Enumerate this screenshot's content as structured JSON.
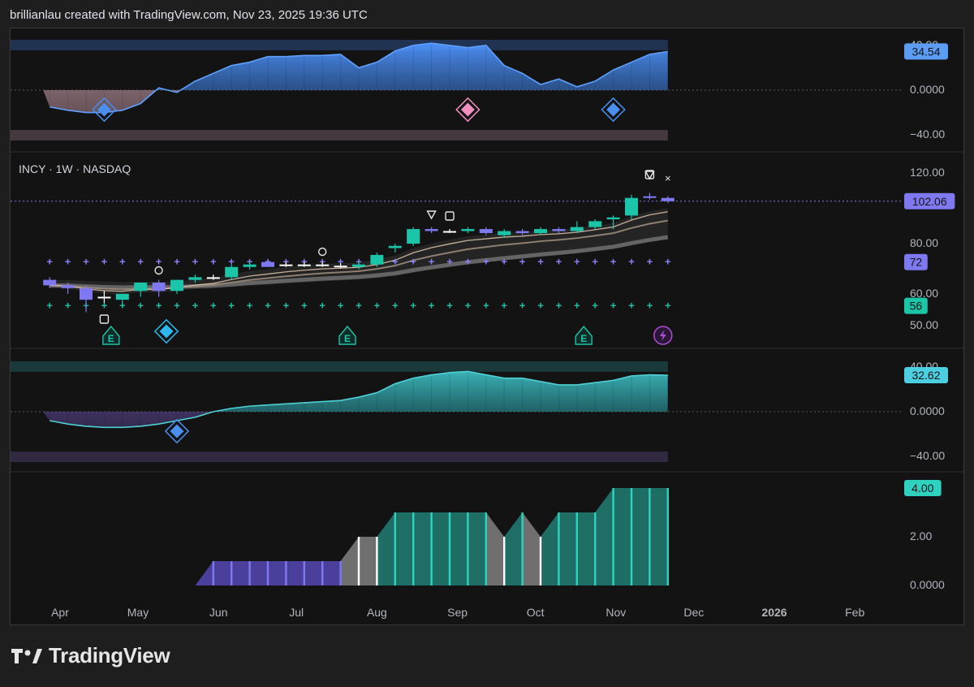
{
  "header": {
    "text": "brillianlau created with TradingView.com, Nov 23, 2025 19:36 UTC"
  },
  "footer": {
    "brand": "TradingView",
    "logo_icon": "tradingview-logo-icon"
  },
  "colors": {
    "bg": "#131313",
    "blue": "#4a8ff0",
    "pink": "#c9a5ae",
    "teal": "#26c6b5",
    "purple": "#7b6cf0",
    "up": "#1bc5a8",
    "down": "#7e79f0",
    "white": "#ffffff",
    "gray": "#8a8a8a"
  },
  "chart_data": [
    {
      "type": "area",
      "pane": "top-oscillator",
      "y_ticks": [
        "40.00",
        "0.0000",
        "−40.00"
      ],
      "y_range": [
        -45,
        45
      ],
      "last_value_label": "34.54",
      "x": [
        "Mar 28",
        "Apr 4",
        "Apr 11",
        "Apr 18",
        "Apr 25",
        "May 2",
        "May 9",
        "May 16",
        "May 23",
        "May 30",
        "Jun 6",
        "Jun 13",
        "Jun 20",
        "Jun 27",
        "Jul 4",
        "Jul 11",
        "Jul 18",
        "Jul 25",
        "Aug 1",
        "Aug 8",
        "Aug 15",
        "Aug 22",
        "Aug 29",
        "Sep 5",
        "Sep 12",
        "Sep 19",
        "Sep 26",
        "Oct 3",
        "Oct 10",
        "Oct 17",
        "Oct 24",
        "Oct 31",
        "Nov 7",
        "Nov 14",
        "Nov 21"
      ],
      "values": [
        -15,
        -18,
        -20,
        -20,
        -18,
        -12,
        2,
        -2,
        8,
        15,
        22,
        25,
        30,
        30,
        31,
        31,
        32,
        20,
        25,
        35,
        40,
        42,
        40,
        38,
        40,
        22,
        15,
        5,
        10,
        3,
        8,
        18,
        25,
        32,
        34.54
      ],
      "markers": [
        {
          "date": "Apr 18",
          "shape": "diamond",
          "color": "#4a8ff0"
        },
        {
          "date": "Sep 5",
          "shape": "diamond",
          "color": "#f08fc0"
        },
        {
          "date": "Oct 31",
          "shape": "diamond",
          "color": "#4a8ff0"
        }
      ]
    },
    {
      "type": "candlestick",
      "pane": "price",
      "title": "INCY · 1W · NASDAQ",
      "y_ticks": [
        "120.00",
        "80.00",
        "60.00",
        "50.00"
      ],
      "last_price": "102.06",
      "price_labels": [
        {
          "text": "102.06",
          "value": 102.06,
          "color": "#7e79f0"
        },
        {
          "text": "72",
          "value": 72,
          "color": "#7e79f0"
        },
        {
          "text": "56",
          "value": 56,
          "color": "#1bc5a8"
        }
      ],
      "candles": [
        {
          "d": "Mar 28",
          "o": 65,
          "h": 66,
          "l": 62,
          "c": 63
        },
        {
          "d": "Apr 4",
          "o": 63,
          "h": 64,
          "l": 60,
          "c": 62
        },
        {
          "d": "Apr 11",
          "o": 62,
          "h": 63,
          "l": 54,
          "c": 58
        },
        {
          "d": "Apr 18",
          "o": 59,
          "h": 61,
          "l": 57,
          "c": 59
        },
        {
          "d": "Apr 25",
          "o": 58,
          "h": 60,
          "l": 56,
          "c": 60
        },
        {
          "d": "May 2",
          "o": 61,
          "h": 64,
          "l": 59,
          "c": 64
        },
        {
          "d": "May 9",
          "o": 64,
          "h": 65,
          "l": 59,
          "c": 61
        },
        {
          "d": "May 16",
          "o": 61,
          "h": 65,
          "l": 60,
          "c": 65
        },
        {
          "d": "May 23",
          "o": 65,
          "h": 67,
          "l": 64,
          "c": 66
        },
        {
          "d": "May 30",
          "o": 66,
          "h": 67,
          "l": 65,
          "c": 66
        },
        {
          "d": "Jun 6",
          "o": 66,
          "h": 71,
          "l": 65,
          "c": 70
        },
        {
          "d": "Jun 13",
          "o": 70,
          "h": 72,
          "l": 69,
          "c": 71
        },
        {
          "d": "Jun 20",
          "o": 72,
          "h": 73,
          "l": 70,
          "c": 70
        },
        {
          "d": "Jun 27",
          "o": 71,
          "h": 72,
          "l": 70,
          "c": 71
        },
        {
          "d": "Jul 4",
          "o": 71,
          "h": 72,
          "l": 70,
          "c": 71
        },
        {
          "d": "Jul 11",
          "o": 71,
          "h": 72,
          "l": 70,
          "c": 71
        },
        {
          "d": "Jul 18",
          "o": 70.5,
          "h": 71.5,
          "l": 69.5,
          "c": 70.5
        },
        {
          "d": "Jul 25",
          "o": 70,
          "h": 72,
          "l": 69,
          "c": 71
        },
        {
          "d": "Aug 1",
          "o": 71,
          "h": 76,
          "l": 70,
          "c": 75
        },
        {
          "d": "Aug 8",
          "o": 78,
          "h": 80,
          "l": 76,
          "c": 79
        },
        {
          "d": "Aug 15",
          "o": 80,
          "h": 88,
          "l": 79,
          "c": 87
        },
        {
          "d": "Aug 22",
          "o": 87,
          "h": 88,
          "l": 85,
          "c": 86
        },
        {
          "d": "Aug 29",
          "o": 86,
          "h": 87,
          "l": 85,
          "c": 86
        },
        {
          "d": "Sep 5",
          "o": 86,
          "h": 88,
          "l": 85,
          "c": 87
        },
        {
          "d": "Sep 12",
          "o": 87,
          "h": 88,
          "l": 84,
          "c": 85
        },
        {
          "d": "Sep 19",
          "o": 84,
          "h": 87,
          "l": 83,
          "c": 86
        },
        {
          "d": "Sep 26",
          "o": 86,
          "h": 87,
          "l": 84,
          "c": 85
        },
        {
          "d": "Oct 3",
          "o": 85,
          "h": 88,
          "l": 84,
          "c": 87
        },
        {
          "d": "Oct 10",
          "o": 87,
          "h": 88,
          "l": 85,
          "c": 86
        },
        {
          "d": "Oct 17",
          "o": 86,
          "h": 91,
          "l": 85,
          "c": 88
        },
        {
          "d": "Oct 24",
          "o": 88,
          "h": 92,
          "l": 87,
          "c": 91
        },
        {
          "d": "Oct 31",
          "o": 92,
          "h": 94,
          "l": 87,
          "c": 93
        },
        {
          "d": "Nov 7",
          "o": 94,
          "h": 106,
          "l": 92,
          "c": 104
        },
        {
          "d": "Nov 14",
          "o": 105,
          "h": 107,
          "l": 103,
          "c": 104
        },
        {
          "d": "Nov 21",
          "o": 104,
          "h": 105,
          "l": 101,
          "c": 102.06
        }
      ],
      "earnings_markers": [
        {
          "date": "Apr 25",
          "label": "E"
        },
        {
          "date": "Jul 25",
          "label": "E"
        },
        {
          "date": "Oct 24",
          "label": "E"
        }
      ],
      "dividend_marker": {
        "date": "Nov 21",
        "icon": "lightning-icon"
      }
    },
    {
      "type": "area",
      "pane": "middle-oscillator",
      "y_ticks": [
        "40.00",
        "0.0000",
        "−40.00"
      ],
      "y_range": [
        -45,
        45
      ],
      "last_value_label": "32.62",
      "x": [
        "Mar 28",
        "Apr 4",
        "Apr 11",
        "Apr 18",
        "Apr 25",
        "May 2",
        "May 9",
        "May 16",
        "May 23",
        "May 30",
        "Jun 6",
        "Jun 13",
        "Jun 20",
        "Jun 27",
        "Jul 4",
        "Jul 11",
        "Jul 18",
        "Jul 25",
        "Aug 1",
        "Aug 8",
        "Aug 15",
        "Aug 22",
        "Aug 29",
        "Sep 5",
        "Sep 12",
        "Sep 19",
        "Sep 26",
        "Oct 3",
        "Oct 10",
        "Oct 17",
        "Oct 24",
        "Oct 31",
        "Nov 7",
        "Nov 14",
        "Nov 21"
      ],
      "values": [
        -8,
        -11,
        -13,
        -14,
        -14,
        -13,
        -11,
        -8,
        -5,
        0,
        3,
        5,
        6,
        7,
        8,
        9,
        10,
        13,
        17,
        25,
        30,
        33,
        35,
        36,
        33,
        30,
        30,
        27,
        24,
        24,
        26,
        28,
        32,
        33,
        32.62
      ],
      "markers": [
        {
          "date": "May 16",
          "shape": "diamond",
          "color": "#4a8ff0"
        }
      ]
    },
    {
      "type": "bar",
      "pane": "bottom-histogram",
      "y_ticks": [
        "4.00",
        "2.00",
        "0.0000"
      ],
      "y_range": [
        0,
        4.5
      ],
      "last_value_label": "4.00",
      "x": [
        "May 23",
        "May 30",
        "Jun 6",
        "Jun 13",
        "Jun 20",
        "Jun 27",
        "Jul 4",
        "Jul 11",
        "Jul 18",
        "Jul 25",
        "Aug 1",
        "Aug 8",
        "Aug 15",
        "Aug 22",
        "Aug 29",
        "Sep 5",
        "Sep 12",
        "Sep 19",
        "Sep 26",
        "Oct 3",
        "Oct 10",
        "Oct 17",
        "Oct 24",
        "Oct 31",
        "Nov 7",
        "Nov 14",
        "Nov 21"
      ],
      "values": [
        0,
        1,
        1,
        1,
        1,
        1,
        1,
        1,
        1,
        2,
        2,
        3,
        3,
        3,
        3,
        3,
        3,
        2,
        3,
        2,
        3,
        3,
        3,
        4,
        4,
        4,
        4
      ],
      "colors": [
        "purple",
        "purple",
        "purple",
        "purple",
        "purple",
        "purple",
        "purple",
        "purple",
        "purple",
        "gray",
        "gray",
        "teal",
        "teal",
        "teal",
        "teal",
        "teal",
        "teal",
        "gray",
        "teal",
        "gray",
        "teal",
        "teal",
        "teal",
        "teal",
        "teal",
        "teal",
        "teal"
      ]
    }
  ],
  "x_axis": {
    "labels": [
      {
        "text": "Apr",
        "date": "Apr 1"
      },
      {
        "text": "May",
        "date": "May 1"
      },
      {
        "text": "Jun",
        "date": "Jun 1"
      },
      {
        "text": "Jul",
        "date": "Jul 1"
      },
      {
        "text": "Aug",
        "date": "Aug 1"
      },
      {
        "text": "Sep",
        "date": "Sep 1"
      },
      {
        "text": "Oct",
        "date": "Oct 1"
      },
      {
        "text": "Nov",
        "date": "Nov 1"
      },
      {
        "text": "Dec",
        "date": "Dec 1"
      },
      {
        "text": "2026",
        "date": "Jan 1"
      },
      {
        "text": "Feb",
        "date": "Feb 1"
      }
    ]
  }
}
